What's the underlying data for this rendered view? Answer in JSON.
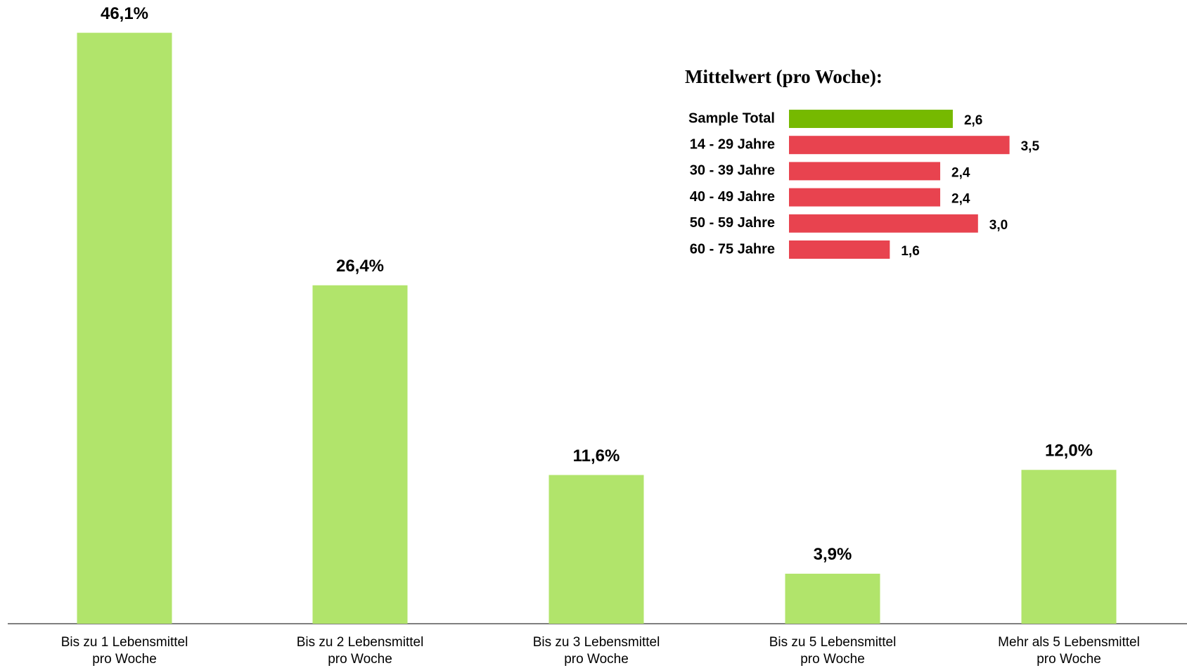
{
  "chart_data": [
    {
      "type": "bar",
      "categories": [
        [
          "Bis zu 1 Lebensmittel",
          "pro Woche"
        ],
        [
          "Bis zu 2 Lebensmittel",
          "pro Woche"
        ],
        [
          "Bis zu 3 Lebensmittel",
          "pro Woche"
        ],
        [
          "Bis zu 5 Lebensmittel",
          "pro Woche"
        ],
        [
          "Mehr als 5 Lebensmittel",
          "pro Woche"
        ]
      ],
      "values": [
        46.1,
        26.4,
        11.6,
        3.9,
        12.0
      ],
      "value_labels": [
        "46,1%",
        "26,4%",
        "11,6%",
        "3,9%",
        "12,0%"
      ],
      "color": "#b1e46b"
    },
    {
      "type": "hbar",
      "title": "Mittelwert (pro Woche):",
      "categories": [
        "Sample Total",
        "14 - 29 Jahre",
        "30 - 39 Jahre",
        "40 - 49 Jahre",
        "50 - 59 Jahre",
        "60 - 75 Jahre"
      ],
      "values": [
        2.6,
        3.5,
        2.4,
        2.4,
        3.0,
        1.6
      ],
      "value_labels": [
        "2,6",
        "3,5",
        "2,4",
        "2,4",
        "3,0",
        "1,6"
      ],
      "colors": [
        "#76b900",
        "#e8434f",
        "#e8434f",
        "#e8434f",
        "#e8434f",
        "#e8434f"
      ]
    }
  ]
}
